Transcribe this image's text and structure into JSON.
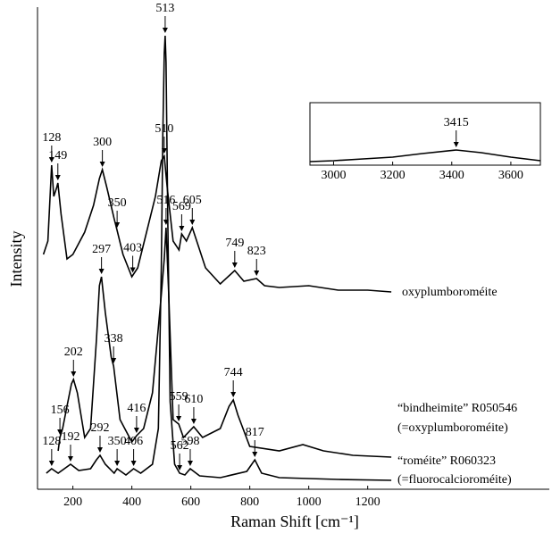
{
  "chart_data": [
    {
      "type": "line",
      "x_label": "Raman Shift [cm⁻¹]",
      "y_label": "Intensity",
      "xlim": [
        80,
        1816
      ],
      "ylim": [
        0,
        538
      ],
      "xticks": [
        200,
        400,
        600,
        800,
        1000,
        1200
      ],
      "series": [
        {
          "name": "oxyplumboroméite",
          "color": "#000000",
          "x": [
            100,
            115,
            128,
            135,
            145,
            149,
            160,
            180,
            200,
            240,
            270,
            290,
            300,
            315,
            340,
            350,
            370,
            400,
            420,
            450,
            480,
            500,
            510,
            520,
            540,
            560,
            569,
            585,
            605,
            625,
            650,
            700,
            749,
            780,
            823,
            850,
            900,
            1000,
            1100,
            1200,
            1280
          ],
          "values": [
            263,
            278,
            363,
            328,
            338,
            343,
            308,
            258,
            263,
            288,
            318,
            348,
            358,
            338,
            303,
            290,
            263,
            238,
            248,
            288,
            328,
            368,
            373,
            338,
            278,
            268,
            286,
            278,
            293,
            273,
            248,
            230,
            245,
            233,
            236,
            228,
            226,
            228,
            223,
            223,
            221
          ],
          "annotations": [
            {
              "x": 128,
              "label": "128"
            },
            {
              "x": 149,
              "label": "149"
            },
            {
              "x": 300,
              "label": "300"
            },
            {
              "x": 350,
              "label": "350"
            },
            {
              "x": 403,
              "label": "403"
            },
            {
              "x": 510,
              "label": "510"
            },
            {
              "x": 569,
              "label": "569"
            },
            {
              "x": 605,
              "label": "605"
            },
            {
              "x": 749,
              "label": "749"
            },
            {
              "x": 823,
              "label": "823"
            }
          ]
        },
        {
          "name": "“bindheimite” R050546",
          "note": "(=oxyplumboroméite)",
          "color": "#000000",
          "x": [
            150,
            156,
            165,
            180,
            195,
            202,
            215,
            240,
            260,
            280,
            290,
            297,
            310,
            330,
            338,
            360,
            400,
            416,
            440,
            470,
            500,
            510,
            516,
            525,
            540,
            559,
            575,
            610,
            640,
            700,
            730,
            744,
            760,
            800,
            900,
            980,
            1050,
            1150,
            1280
          ],
          "values": [
            43,
            58,
            68,
            93,
            118,
            123,
            108,
            58,
            68,
            168,
            228,
            238,
            198,
            148,
            138,
            78,
            53,
            60,
            68,
            108,
            218,
            258,
            293,
            218,
            78,
            73,
            58,
            70,
            58,
            68,
            93,
            100,
            83,
            48,
            43,
            50,
            43,
            38,
            36
          ],
          "annotations": [
            {
              "x": 156,
              "label": "156"
            },
            {
              "x": 202,
              "label": "202"
            },
            {
              "x": 297,
              "label": "297"
            },
            {
              "x": 338,
              "label": "338"
            },
            {
              "x": 416,
              "label": "416"
            },
            {
              "x": 516,
              "label": "516"
            },
            {
              "x": 559,
              "label": "559"
            },
            {
              "x": 610,
              "label": "610"
            },
            {
              "x": 744,
              "label": "744"
            }
          ]
        },
        {
          "name": "“roméite” R060323",
          "note": "(=fluorocalcioroméite)",
          "color": "#000000",
          "x": [
            110,
            128,
            150,
            192,
            220,
            260,
            280,
            292,
            310,
            340,
            350,
            380,
            406,
            430,
            470,
            490,
            500,
            505,
            510,
            513,
            516,
            522,
            530,
            545,
            562,
            580,
            598,
            630,
            700,
            790,
            817,
            840,
            900,
            1100,
            1280
          ],
          "values": [
            18,
            23,
            18,
            28,
            21,
            23,
            33,
            38,
            28,
            18,
            23,
            16,
            23,
            18,
            28,
            68,
            248,
            398,
            488,
            508,
            478,
            298,
            98,
            28,
            18,
            16,
            23,
            15,
            13,
            20,
            33,
            18,
            13,
            11,
            10
          ],
          "annotations": [
            {
              "x": 128,
              "label": "128"
            },
            {
              "x": 192,
              "label": "192"
            },
            {
              "x": 292,
              "label": "292"
            },
            {
              "x": 350,
              "label": "350"
            },
            {
              "x": 406,
              "label": "406"
            },
            {
              "x": 513,
              "label": "513"
            },
            {
              "x": 562,
              "label": "562"
            },
            {
              "x": 598,
              "label": "598"
            },
            {
              "x": 817,
              "label": "817"
            }
          ]
        }
      ]
    },
    {
      "type": "line",
      "xlim": [
        2920,
        3700
      ],
      "ylim": [
        0,
        70
      ],
      "xticks": [
        3000,
        3200,
        3400,
        3600
      ],
      "series": [
        {
          "color": "#000000",
          "x": [
            2920,
            3000,
            3100,
            3200,
            3300,
            3415,
            3500,
            3600,
            3700
          ],
          "values": [
            4,
            5,
            7,
            9,
            13,
            17,
            14,
            9,
            5
          ],
          "annotations": [
            {
              "x": 3415,
              "label": "3415"
            }
          ]
        }
      ]
    }
  ]
}
